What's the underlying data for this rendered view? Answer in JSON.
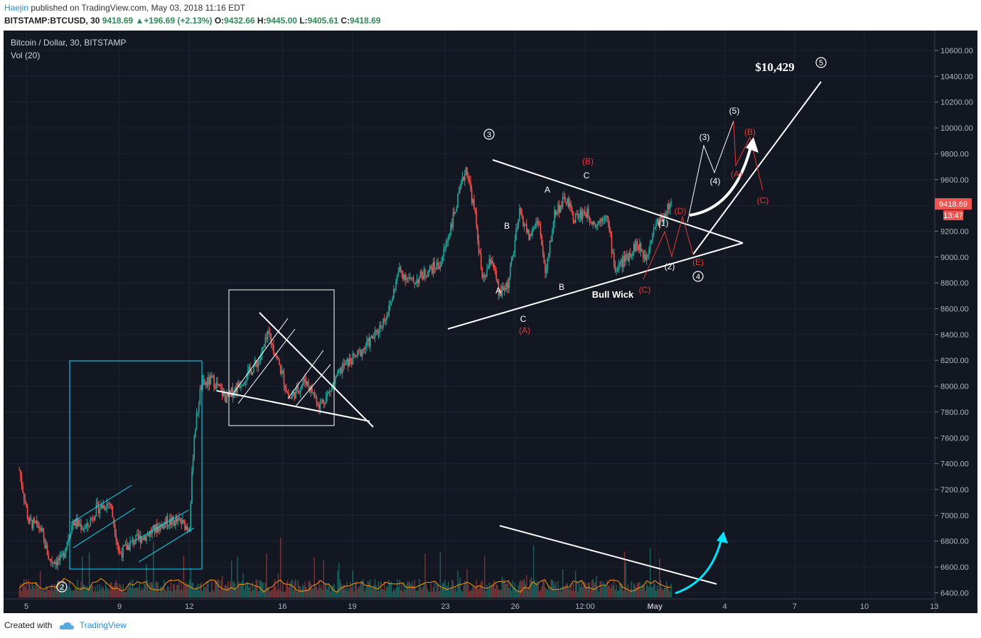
{
  "header": {
    "author": "Haejin",
    "published_text": " published on TradingView.com, May 03, 2018 11:16 EDT",
    "symbol": "BITSTAMP:BTCUSD, 30",
    "last": "9418.69",
    "change": "▲+196.69 (+2.13%)",
    "o_label": "O:",
    "o": "9432.66",
    "h_label": "H:",
    "h": "9445.00",
    "l_label": "L:",
    "l": "9405.61",
    "c_label": "C:",
    "c": "9418.69"
  },
  "chart_data": {
    "type": "candlestick",
    "title": "Bitcoin / Dollar, 30, BITSTAMP",
    "indicator": "Vol (20)",
    "ylim": [
      6400,
      10700
    ],
    "y_ticks": [
      "10600.00",
      "10400.00",
      "10200.00",
      "10000.00",
      "9800.00",
      "9600.00",
      "9400.00",
      "9200.00",
      "9000.00",
      "8800.00",
      "8600.00",
      "8400.00",
      "8200.00",
      "8000.00",
      "7800.00",
      "7600.00",
      "7400.00",
      "7200.00",
      "7000.00",
      "6800.00",
      "6600.00",
      "6400.00"
    ],
    "x_ticks": [
      "5",
      "9",
      "12",
      "16",
      "19",
      "23",
      "26",
      "12:00",
      "May",
      "4",
      "7",
      "10",
      "13"
    ],
    "price_label": "9418.69",
    "countdown_label": "13:47",
    "colors": {
      "up": "#26a69a",
      "down": "#ef5350",
      "background": "#131722",
      "drawing": "#ffffff",
      "cyan": "#00e5ff",
      "red_label": "#e53935"
    },
    "approx_price_path": [
      [
        4.7,
        7350
      ],
      [
        5.1,
        6950
      ],
      [
        5.6,
        6900
      ],
      [
        6.0,
        6650
      ],
      [
        6.5,
        6650
      ],
      [
        7.0,
        6950
      ],
      [
        7.6,
        6900
      ],
      [
        8.0,
        7050
      ],
      [
        8.6,
        7100
      ],
      [
        9.0,
        6700
      ],
      [
        9.6,
        6800
      ],
      [
        10.2,
        6850
      ],
      [
        11.0,
        6950
      ],
      [
        11.6,
        6950
      ],
      [
        12.0,
        6900
      ],
      [
        12.2,
        7600
      ],
      [
        12.5,
        8000
      ],
      [
        13.0,
        8050
      ],
      [
        13.6,
        7900
      ],
      [
        14.3,
        8050
      ],
      [
        15.0,
        8200
      ],
      [
        15.4,
        8400
      ],
      [
        15.8,
        8200
      ],
      [
        16.3,
        7900
      ],
      [
        17.0,
        8050
      ],
      [
        17.6,
        7850
      ],
      [
        18.0,
        7950
      ],
      [
        18.6,
        8150
      ],
      [
        19.3,
        8250
      ],
      [
        20.0,
        8400
      ],
      [
        20.6,
        8600
      ],
      [
        21.0,
        8900
      ],
      [
        21.6,
        8800
      ],
      [
        22.3,
        8900
      ],
      [
        22.8,
        8950
      ],
      [
        23.4,
        9350
      ],
      [
        23.9,
        9700
      ],
      [
        24.3,
        9300
      ],
      [
        24.6,
        8800
      ],
      [
        25.0,
        9000
      ],
      [
        25.3,
        8700
      ],
      [
        25.7,
        8800
      ],
      [
        26.2,
        9350
      ],
      [
        26.6,
        9150
      ],
      [
        27.0,
        9300
      ],
      [
        27.3,
        8850
      ],
      [
        27.7,
        9350
      ],
      [
        28.2,
        9450
      ],
      [
        28.5,
        9300
      ],
      [
        29.0,
        9350
      ],
      [
        29.5,
        9250
      ],
      [
        29.9,
        9350
      ],
      [
        30.3,
        8900
      ],
      [
        30.8,
        9000
      ],
      [
        31.2,
        9100
      ],
      [
        31.6,
        9000
      ],
      [
        32.0,
        9250
      ],
      [
        32.3,
        9300
      ],
      [
        32.7,
        9420
      ]
    ],
    "annotations": [
      {
        "text": "$10,429",
        "style": "price-target"
      },
      {
        "text": "5",
        "style": "circled"
      },
      {
        "text": "3",
        "style": "circled"
      },
      {
        "text": "4",
        "style": "circled"
      },
      {
        "text": "2",
        "style": "circled"
      },
      {
        "text": "(B)",
        "style": "red"
      },
      {
        "text": "C",
        "style": "white"
      },
      {
        "text": "A",
        "style": "white"
      },
      {
        "text": "B",
        "style": "white"
      },
      {
        "text": "A",
        "style": "white"
      },
      {
        "text": "C",
        "style": "white"
      },
      {
        "text": "(A)",
        "style": "red"
      },
      {
        "text": "B",
        "style": "white"
      },
      {
        "text": "Bull Wick",
        "style": "bold"
      },
      {
        "text": "(C)",
        "style": "red"
      },
      {
        "text": "(1)",
        "style": "white"
      },
      {
        "text": "(2)",
        "style": "white"
      },
      {
        "text": "(D)",
        "style": "red"
      },
      {
        "text": "(E)",
        "style": "red"
      },
      {
        "text": "(3)",
        "style": "white"
      },
      {
        "text": "(4)",
        "style": "white"
      },
      {
        "text": "(5)",
        "style": "white"
      },
      {
        "text": "(B)",
        "style": "red"
      },
      {
        "text": "(A)",
        "style": "red"
      },
      {
        "text": "(C)",
        "style": "red"
      }
    ]
  },
  "footer": {
    "created_with": "Created with",
    "brand": "TradingView"
  }
}
